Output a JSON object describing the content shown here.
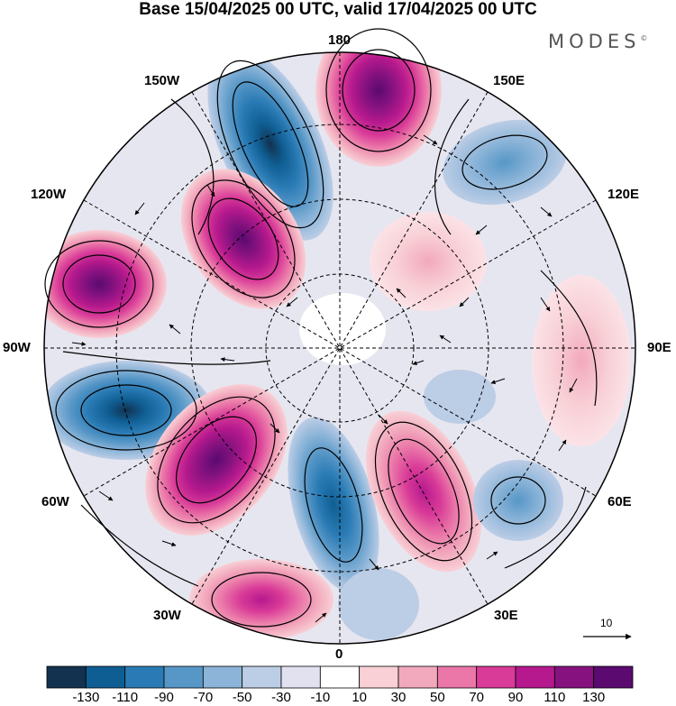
{
  "title": "Base 15/04/2025 00 UTC, valid 17/04/2025 00 UTC",
  "brand": "MODES",
  "brand_mark": "©",
  "longitude_labels": {
    "l180": "180",
    "l150e": "150E",
    "l120e": "120E",
    "l90e": "90E",
    "l60e": "60E",
    "l30e": "30E",
    "l0": "0",
    "l30w": "30W",
    "l60w": "60W",
    "l90w": "90W",
    "l120w": "120W",
    "l150w": "150W"
  },
  "vector_reference": {
    "label": "10"
  },
  "colorbar": {
    "levels": [
      "-130",
      "-110",
      "-90",
      "-70",
      "-50",
      "-30",
      "-10",
      "10",
      "30",
      "50",
      "70",
      "90",
      "110",
      "130"
    ],
    "colors": [
      "#12324f",
      "#0f5e93",
      "#2a7bb5",
      "#5797c7",
      "#8bb4d8",
      "#bccde6",
      "#e1e1ef",
      "#ffffff",
      "#f8d0d6",
      "#f2a9bd",
      "#ea77a8",
      "#d93b98",
      "#b5198d",
      "#85127f",
      "#5b0a70"
    ]
  },
  "anomaly_centers": [
    {
      "lon": "180",
      "sign": "positive",
      "max": 130
    },
    {
      "lon": "160W",
      "sign": "negative",
      "max": -120
    },
    {
      "lon": "135W",
      "sign": "positive",
      "max": 130
    },
    {
      "lon": "110W",
      "sign": "positive",
      "max": 110
    },
    {
      "lon": "80W",
      "sign": "negative",
      "max": -120
    },
    {
      "lon": "45W",
      "sign": "positive",
      "max": 130
    },
    {
      "lon": "10W",
      "sign": "negative",
      "max": -90
    },
    {
      "lon": "25E",
      "sign": "positive",
      "max": 90
    },
    {
      "lon": "55E",
      "sign": "negative",
      "max": -70
    },
    {
      "lon": "140E",
      "sign": "negative",
      "max": -60
    },
    {
      "lon": "95E",
      "sign": "positive",
      "max": 40
    }
  ]
}
